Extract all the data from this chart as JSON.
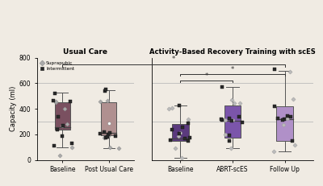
{
  "title_left": "Usual Care",
  "title_right": "Activity-Based Recovery Training with scES",
  "ylabel": "Capacity (ml)",
  "ylim": [
    0,
    800
  ],
  "yticks": [
    0,
    200,
    400,
    600,
    800
  ],
  "hlines": [
    300,
    600
  ],
  "background_color": "#f0ebe3",
  "groups": {
    "usual_care": {
      "labels": [
        "Baseline",
        "Post Usual Care"
      ],
      "boxes": [
        {
          "q1": 235,
          "median": 255,
          "q3": 450,
          "whisker_low": 100,
          "whisker_high": 525,
          "mean": 270,
          "color": "#7a5060"
        },
        {
          "q1": 195,
          "median": 210,
          "q3": 450,
          "whisker_low": 90,
          "whisker_high": 545,
          "mean": 285,
          "color": "#b09090"
        }
      ],
      "suprapubic": [
        [
          38,
          100,
          280,
          400,
          450,
          460
        ],
        [
          90,
          100,
          175,
          455,
          465,
          185
        ]
      ],
      "intermittent": [
        [
          110,
          130,
          185,
          235,
          270,
          335,
          455,
          465,
          520
        ],
        [
          175,
          180,
          200,
          205,
          215,
          220,
          540,
          555,
          185
        ]
      ]
    },
    "abrt": {
      "labels": [
        "Baseline",
        "ABRT-scES",
        "Follow Up"
      ],
      "boxes": [
        {
          "q1": 150,
          "median": 168,
          "q3": 280,
          "whisker_low": 18,
          "whisker_high": 425,
          "mean": 210,
          "color": "#5b3a7e"
        },
        {
          "q1": 175,
          "median": 308,
          "q3": 428,
          "whisker_low": 90,
          "whisker_high": 568,
          "mean": 312,
          "color": "#7b55aa"
        },
        {
          "q1": 150,
          "median": 318,
          "q3": 418,
          "whisker_low": 65,
          "whisker_high": 695,
          "mean": 328,
          "color": "#b090c8"
        }
      ],
      "suprapubic": [
        [
          18,
          95,
          188,
          318,
          398,
          408
        ],
        [
          90,
          198,
          312,
          442,
          448,
          468
        ],
        [
          65,
          118,
          278,
          328,
          478,
          692
        ]
      ],
      "intermittent": [
        [
          150,
          158,
          172,
          205,
          238,
          258,
          285,
          425,
          168
        ],
        [
          150,
          195,
          295,
          312,
          318,
          335,
          568,
          308,
          325
        ],
        [
          150,
          318,
          328,
          338,
          342,
          418,
          708,
          315
        ]
      ]
    }
  }
}
